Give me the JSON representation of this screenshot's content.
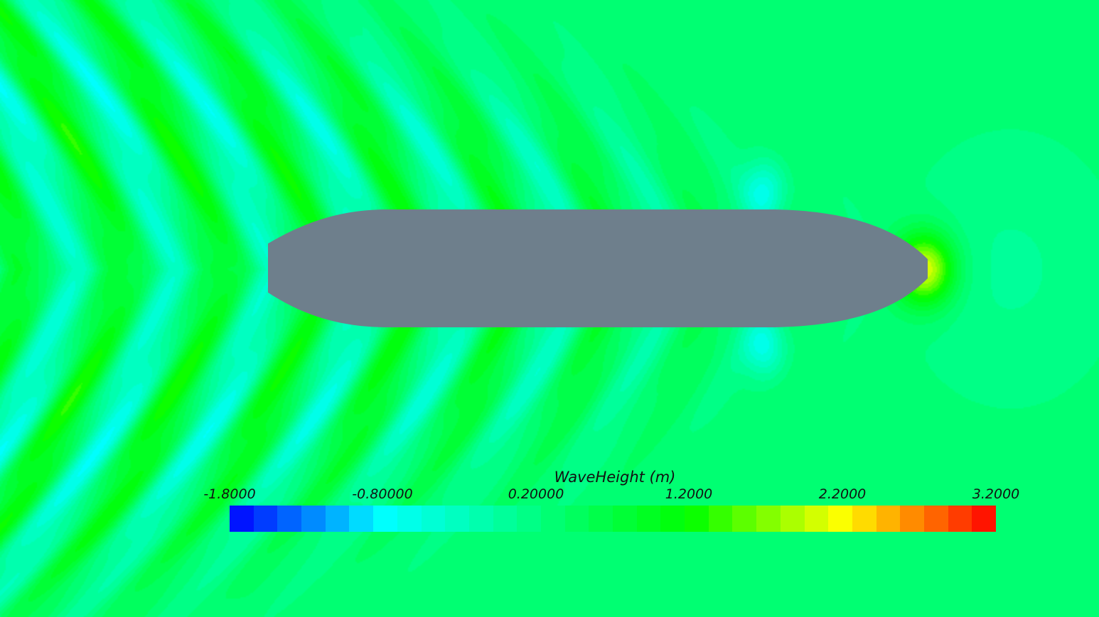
{
  "chart_data": {
    "type": "heatmap",
    "title": "",
    "colorbar": {
      "title": "WaveHeight (m)",
      "range": [
        -1.8,
        3.2
      ],
      "tick_labels": [
        "-1.8000",
        "-0.80000",
        "0.20000",
        "1.2000",
        "2.2000",
        "3.2000"
      ],
      "tick_values": [
        -1.8,
        -0.8,
        0.2,
        1.2,
        2.2,
        3.2
      ],
      "levels": 32,
      "placement": "bottom-center"
    },
    "colormap": [
      "#0000ff",
      "#00ffff",
      "#00ff80",
      "#00ff00",
      "#ffff00",
      "#ff0000"
    ],
    "hull_color": "#6e7f8c",
    "background_value": 0.3
  }
}
